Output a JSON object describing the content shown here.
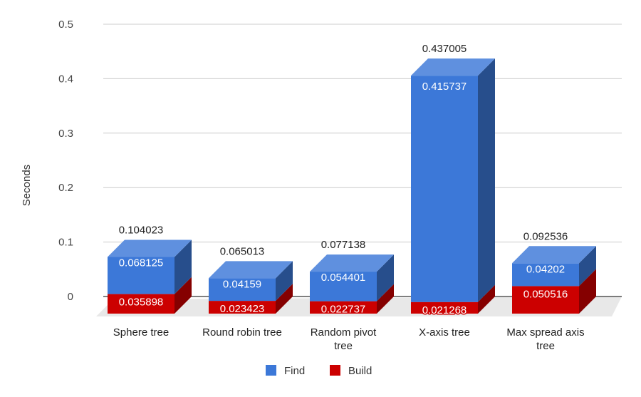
{
  "chart_data": {
    "type": "bar",
    "stacked": true,
    "three_d": true,
    "ylabel": "Seconds",
    "xlabel": "",
    "ylim": [
      0,
      0.5
    ],
    "yticks": [
      "0",
      "0.1",
      "0.2",
      "0.3",
      "0.4",
      "0.5"
    ],
    "grid": true,
    "legend_position": "bottom",
    "categories": [
      [
        "Sphere tree"
      ],
      [
        "Round robin tree"
      ],
      [
        "Random pivot",
        "tree"
      ],
      [
        "X-axis tree"
      ],
      [
        "Max spread axis",
        "tree"
      ]
    ],
    "series": [
      {
        "name": "Build",
        "color": "#cc0000",
        "values": [
          0.035898,
          0.023423,
          0.022737,
          0.021268,
          0.050516
        ],
        "labels": [
          "0.035898",
          "0.023423",
          "0.022737",
          "0.021268",
          "0.050516"
        ]
      },
      {
        "name": "Find",
        "color": "#3c78d8",
        "values": [
          0.068125,
          0.04159,
          0.054401,
          0.415737,
          0.04202
        ],
        "labels": [
          "0.068125",
          "0.04159",
          "0.054401",
          "0.415737",
          "0.04202"
        ]
      }
    ],
    "totals": [
      "0.104023",
      "0.065013",
      "0.077138",
      "0.437005",
      "0.092536"
    ]
  }
}
